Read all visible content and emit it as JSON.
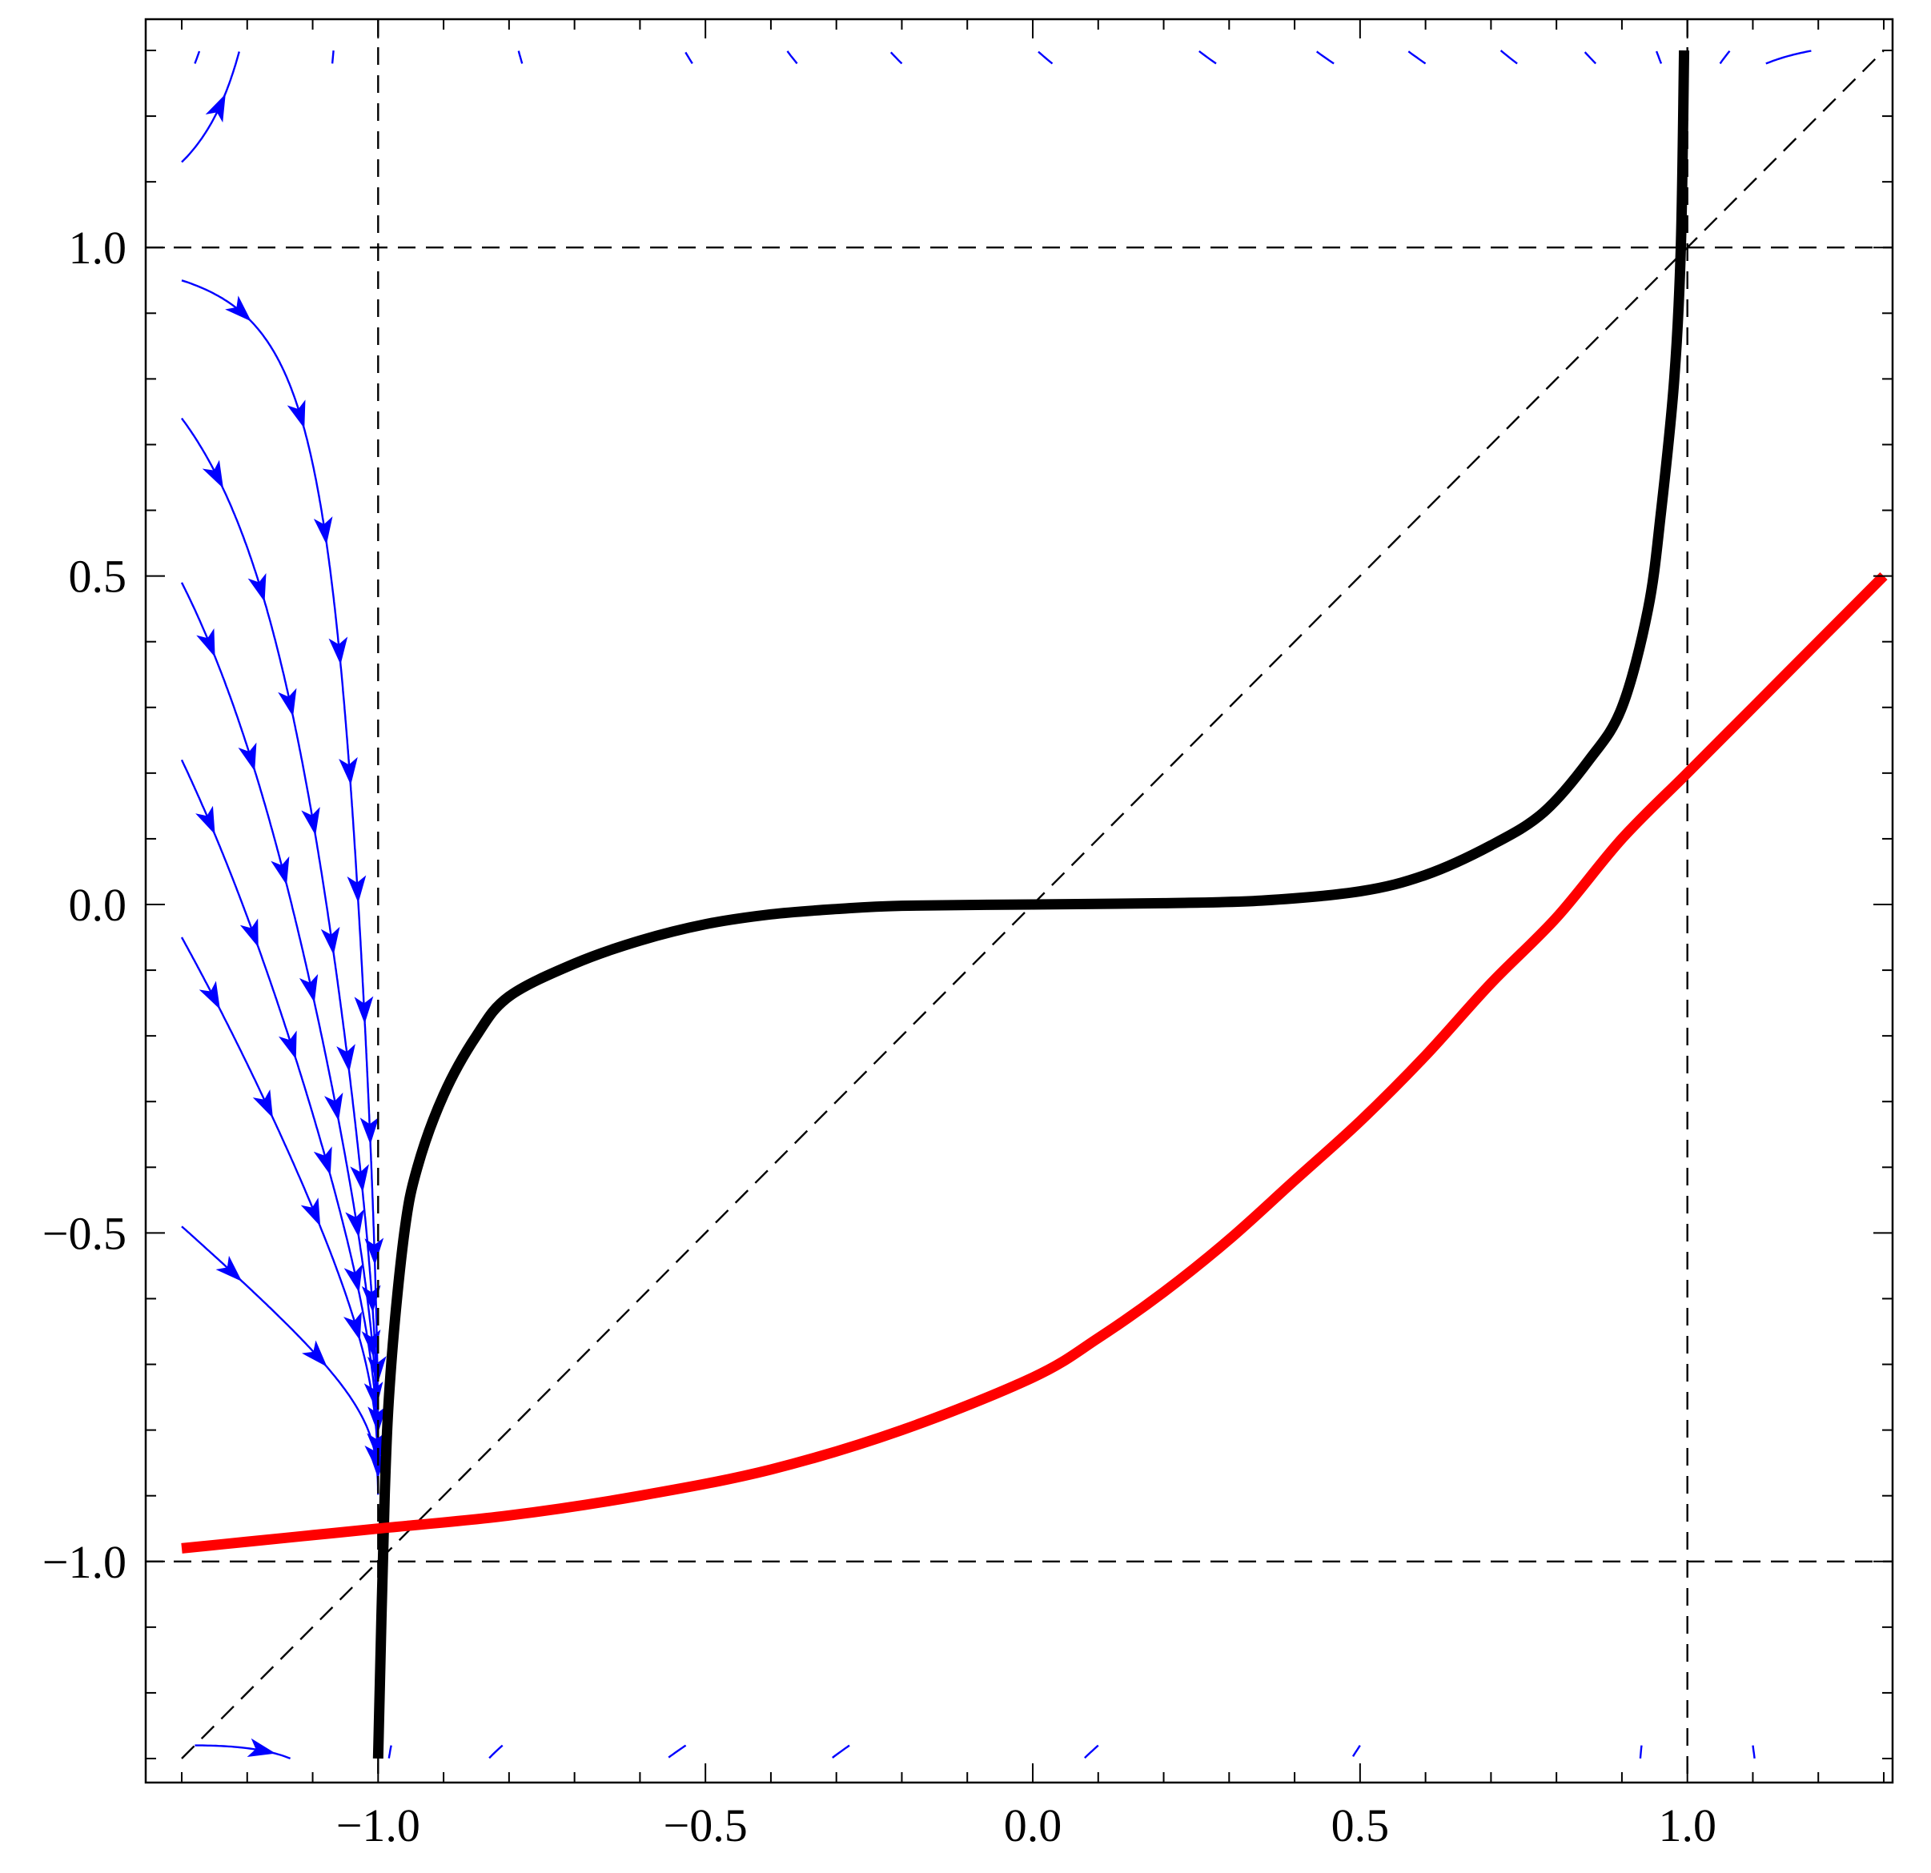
{
  "chart_data": {
    "type": "line",
    "title": "",
    "xlabel": "",
    "ylabel": "",
    "xlim": [
      -1.3,
      1.3
    ],
    "ylim": [
      -1.3,
      1.3
    ],
    "x_ticks": [
      {
        "value": -1.0,
        "label": "−1.0"
      },
      {
        "value": -0.5,
        "label": "−0.5"
      },
      {
        "value": 0.0,
        "label": "0.0"
      },
      {
        "value": 0.5,
        "label": "0.5"
      },
      {
        "value": 1.0,
        "label": "1.0"
      }
    ],
    "y_ticks": [
      {
        "value": -1.0,
        "label": "−1.0"
      },
      {
        "value": -0.5,
        "label": "−0.5"
      },
      {
        "value": 0.0,
        "label": "0.0"
      },
      {
        "value": 0.5,
        "label": "0.5"
      },
      {
        "value": 1.0,
        "label": "1.0"
      }
    ],
    "minor_tick_step": 0.1,
    "grid": false,
    "reference_lines": [
      {
        "kind": "vertical",
        "x": -1.0,
        "style": "dashed",
        "color": "#000000"
      },
      {
        "kind": "vertical",
        "x": 1.0,
        "style": "dashed",
        "color": "#000000"
      },
      {
        "kind": "horizontal",
        "y": -1.0,
        "style": "dashed",
        "color": "#000000"
      },
      {
        "kind": "horizontal",
        "y": 1.0,
        "style": "dashed",
        "color": "#000000"
      },
      {
        "kind": "diagonal",
        "from": [
          -1.3,
          -1.3
        ],
        "to": [
          1.3,
          1.3
        ],
        "style": "dashed",
        "color": "#000000"
      }
    ],
    "series": [
      {
        "style": "thick-solid",
        "color": "#000000",
        "points": [
          [
            -1.0,
            -1.3
          ],
          [
            -0.99,
            -0.9
          ],
          [
            -0.98,
            -0.7
          ],
          [
            -0.96,
            -0.5
          ],
          [
            -0.94,
            -0.4
          ],
          [
            -0.9,
            -0.29
          ],
          [
            -0.85,
            -0.2
          ],
          [
            -0.8,
            -0.14
          ],
          [
            -0.7,
            -0.09
          ],
          [
            -0.6,
            -0.055
          ],
          [
            -0.5,
            -0.03
          ],
          [
            -0.4,
            -0.015
          ],
          [
            -0.3,
            -0.007
          ],
          [
            -0.2,
            -0.002
          ],
          [
            0.0,
            0.0
          ],
          [
            0.2,
            0.002
          ],
          [
            0.35,
            0.006
          ],
          [
            0.5,
            0.02
          ],
          [
            0.6,
            0.045
          ],
          [
            0.7,
            0.09
          ],
          [
            0.78,
            0.14
          ],
          [
            0.85,
            0.22
          ],
          [
            0.9,
            0.3
          ],
          [
            0.94,
            0.45
          ],
          [
            0.96,
            0.6
          ],
          [
            0.98,
            0.8
          ],
          [
            0.99,
            1.0
          ],
          [
            0.995,
            1.3
          ]
        ]
      },
      {
        "style": "thick-solid",
        "color": "#ff0000",
        "points": [
          [
            -1.3,
            -0.98
          ],
          [
            -1.2,
            -0.97
          ],
          [
            -1.1,
            -0.96
          ],
          [
            -1.0,
            -0.95
          ],
          [
            -0.8,
            -0.93
          ],
          [
            -0.6,
            -0.9
          ],
          [
            -0.4,
            -0.86
          ],
          [
            -0.2,
            -0.8
          ],
          [
            0.0,
            -0.72
          ],
          [
            0.1,
            -0.66
          ],
          [
            0.2,
            -0.59
          ],
          [
            0.3,
            -0.51
          ],
          [
            0.4,
            -0.42
          ],
          [
            0.5,
            -0.33
          ],
          [
            0.6,
            -0.23
          ],
          [
            0.7,
            -0.12
          ],
          [
            0.8,
            -0.02
          ],
          [
            0.9,
            0.1
          ],
          [
            1.0,
            0.2
          ],
          [
            1.1,
            0.3
          ],
          [
            1.2,
            0.4
          ],
          [
            1.3,
            0.5
          ]
        ]
      }
    ],
    "stream_field": {
      "color": "#0000ff",
      "system": {
        "dx_dt": "-(1 - x^2)",
        "dy_dt": "(x - y)(1 - y^2)"
      },
      "seeds": [
        [
          -1.28,
          1.28
        ],
        [
          -1.07,
          1.28
        ],
        [
          -0.78,
          1.28
        ],
        [
          -0.52,
          1.28
        ],
        [
          -0.36,
          1.28
        ],
        [
          -0.2,
          1.28
        ],
        [
          0.03,
          1.28
        ],
        [
          0.28,
          1.28
        ],
        [
          0.46,
          1.28
        ],
        [
          0.6,
          1.28
        ],
        [
          0.74,
          1.28
        ],
        [
          0.86,
          1.28
        ],
        [
          0.96,
          1.28
        ],
        [
          1.05,
          1.28
        ],
        [
          1.12,
          1.28
        ],
        [
          -1.3,
          1.13
        ],
        [
          -1.3,
          0.95
        ],
        [
          -1.3,
          0.74
        ],
        [
          -1.3,
          0.49
        ],
        [
          -1.3,
          0.22
        ],
        [
          -1.3,
          -0.05
        ],
        [
          -1.3,
          -0.49
        ],
        [
          -1.28,
          -1.28
        ],
        [
          -0.98,
          -1.28
        ],
        [
          -0.81,
          -1.28
        ],
        [
          -0.53,
          -1.28
        ],
        [
          -0.28,
          -1.28
        ],
        [
          0.1,
          -1.28
        ],
        [
          0.5,
          -1.28
        ],
        [
          0.93,
          -1.28
        ],
        [
          1.1,
          -1.28
        ],
        [
          1.3,
          -1.25
        ],
        [
          1.3,
          -1.1
        ],
        [
          1.3,
          -0.93
        ],
        [
          1.3,
          -0.74
        ],
        [
          1.3,
          -0.55
        ],
        [
          1.3,
          -0.42
        ],
        [
          1.3,
          -0.28
        ],
        [
          1.3,
          -0.13
        ],
        [
          1.3,
          0.07
        ],
        [
          1.3,
          0.38
        ],
        [
          1.3,
          0.62
        ]
      ]
    }
  }
}
